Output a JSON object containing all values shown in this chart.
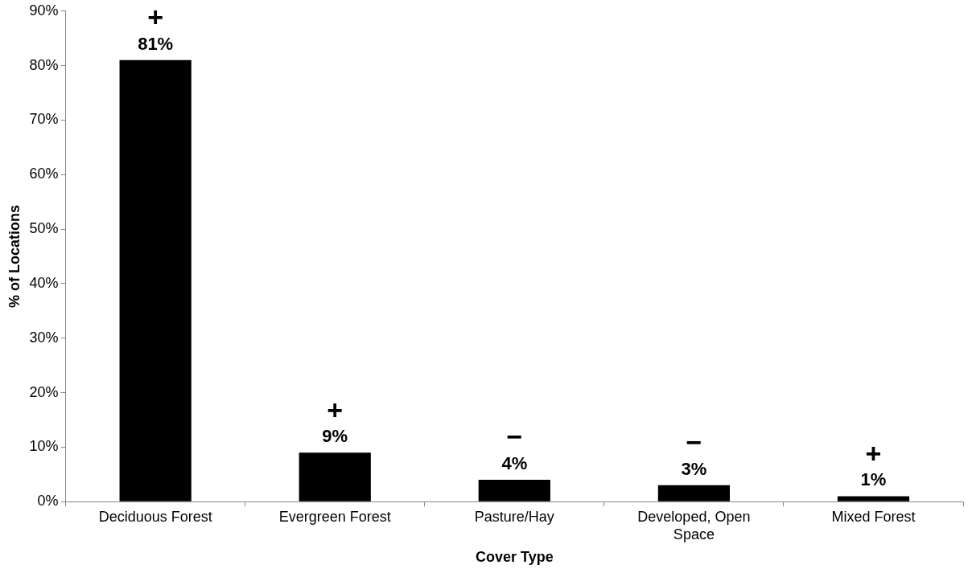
{
  "chart_data": {
    "type": "bar",
    "xlabel": "Cover Type",
    "ylabel": "% of Locations",
    "categories": [
      "Deciduous Forest",
      "Evergreen Forest",
      "Pasture/Hay",
      "Developed, Open Space",
      "Mixed Forest"
    ],
    "values": [
      81,
      9,
      4,
      3,
      1
    ],
    "value_labels": [
      "81%",
      "9%",
      "4%",
      "3%",
      "1%"
    ],
    "color": "#000000",
    "ylim": [
      0,
      90
    ],
    "yticks": [
      {
        "value": 0,
        "label": "0%"
      },
      {
        "value": 10,
        "label": "10%"
      },
      {
        "value": 20,
        "label": "20%"
      },
      {
        "value": 30,
        "label": "30%"
      },
      {
        "value": 40,
        "label": "40%"
      },
      {
        "value": 50,
        "label": "50%"
      },
      {
        "value": 60,
        "label": "60%"
      },
      {
        "value": 70,
        "label": "70%"
      },
      {
        "value": 80,
        "label": "80%"
      },
      {
        "value": 90,
        "label": "90%"
      }
    ],
    "annotations": [
      {
        "text": "+",
        "x": "Deciduous Forest",
        "y": 81
      },
      {
        "text": "+",
        "x": "Evergreen Forest",
        "y": 9
      },
      {
        "text": "−",
        "x": "Pasture/Hay",
        "y": 4
      },
      {
        "text": "−",
        "x": "Developed, Open Space",
        "y": 3
      },
      {
        "text": "+",
        "x": "Mixed Forest",
        "y": 1
      }
    ],
    "grid": false,
    "legend": false
  }
}
